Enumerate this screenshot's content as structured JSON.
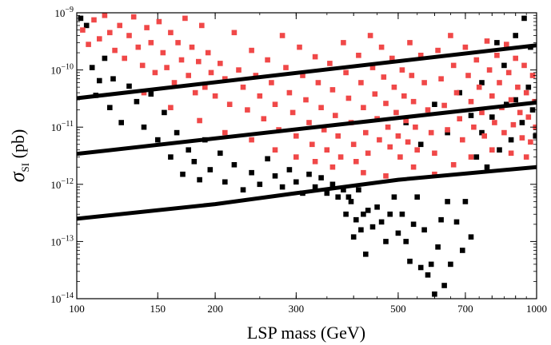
{
  "chart_data": {
    "type": "scatter",
    "xlabel": "LSP mass (GeV)",
    "ylabel_main": "σ",
    "ylabel_sub": "SI",
    "ylabel_unit": " (pb)",
    "x_scale": "log",
    "y_scale": "log",
    "xlim": [
      100,
      1000
    ],
    "ylim": [
      1e-14,
      1e-09
    ],
    "x_ticks": [
      {
        "value": 100,
        "label": "100"
      },
      {
        "value": 150,
        "label": "150"
      },
      {
        "value": 200,
        "label": "200"
      },
      {
        "value": 300,
        "label": "300"
      },
      {
        "value": 500,
        "label": "500"
      },
      {
        "value": 700,
        "label": "700"
      },
      {
        "value": 1000,
        "label": "1000"
      }
    ],
    "y_ticks": [
      {
        "value": 1e-14,
        "mant": "10",
        "exp": "−14"
      },
      {
        "value": 1e-13,
        "mant": "10",
        "exp": "−13"
      },
      {
        "value": 1e-12,
        "mant": "10",
        "exp": "−12"
      },
      {
        "value": 1e-11,
        "mant": "10",
        "exp": "−11"
      },
      {
        "value": 1e-10,
        "mant": "10",
        "exp": "−10"
      },
      {
        "value": 1e-09,
        "mant": "10",
        "exp": "−9"
      }
    ],
    "grid": false,
    "lines": [
      {
        "color": "#000000",
        "points": [
          [
            100,
            3.2e-11
          ],
          [
            1000,
            2.7e-10
          ]
        ]
      },
      {
        "color": "#000000",
        "points": [
          [
            100,
            3.4e-12
          ],
          [
            1000,
            2.7e-11
          ]
        ]
      },
      {
        "color": "#000000",
        "points": [
          [
            100,
            2.5e-13
          ],
          [
            200,
            4.5e-13
          ],
          [
            300,
            7e-13
          ],
          [
            500,
            1.2e-12
          ],
          [
            1000,
            2e-12
          ]
        ]
      }
    ],
    "series": [
      {
        "color": "#000000",
        "points": [
          [
            102,
            8e-10
          ],
          [
            105,
            6e-10
          ],
          [
            108,
            1.1e-10
          ],
          [
            110,
            3.6e-11
          ],
          [
            112,
            6.5e-11
          ],
          [
            115,
            1.6e-10
          ],
          [
            118,
            2.2e-11
          ],
          [
            120,
            7e-11
          ],
          [
            125,
            1.2e-11
          ],
          [
            130,
            5.2e-11
          ],
          [
            135,
            2.8e-11
          ],
          [
            140,
            1e-11
          ],
          [
            145,
            3.8e-11
          ],
          [
            150,
            6e-12
          ],
          [
            155,
            1.8e-11
          ],
          [
            160,
            3e-12
          ],
          [
            165,
            8e-12
          ],
          [
            170,
            1.5e-12
          ],
          [
            175,
            4e-12
          ],
          [
            180,
            2.5e-12
          ],
          [
            185,
            1.2e-12
          ],
          [
            190,
            6e-12
          ],
          [
            195,
            1.8e-12
          ],
          [
            205,
            3.5e-12
          ],
          [
            210,
            1.1e-12
          ],
          [
            220,
            2.2e-12
          ],
          [
            230,
            8e-13
          ],
          [
            240,
            1.6e-12
          ],
          [
            250,
            1e-12
          ],
          [
            260,
            2.8e-12
          ],
          [
            270,
            1.4e-12
          ],
          [
            280,
            9e-13
          ],
          [
            290,
            1.8e-12
          ],
          [
            300,
            1.1e-12
          ],
          [
            310,
            7e-13
          ],
          [
            320,
            1.5e-12
          ],
          [
            330,
            9e-13
          ],
          [
            340,
            1.3e-12
          ],
          [
            350,
            7e-13
          ],
          [
            360,
            1e-12
          ],
          [
            370,
            6e-13
          ],
          [
            380,
            8e-13
          ],
          [
            385,
            3e-13
          ],
          [
            390,
            6e-13
          ],
          [
            395,
            5e-13
          ],
          [
            400,
            1.2e-13
          ],
          [
            405,
            2.4e-13
          ],
          [
            410,
            8e-13
          ],
          [
            415,
            1.6e-13
          ],
          [
            420,
            3e-13
          ],
          [
            425,
            6e-14
          ],
          [
            430,
            3.5e-13
          ],
          [
            440,
            1.8e-13
          ],
          [
            450,
            4e-13
          ],
          [
            460,
            2.2e-13
          ],
          [
            470,
            1e-13
          ],
          [
            480,
            3e-13
          ],
          [
            490,
            6e-13
          ],
          [
            500,
            1.4e-13
          ],
          [
            510,
            3e-13
          ],
          [
            520,
            1e-13
          ],
          [
            530,
            4.5e-14
          ],
          [
            540,
            2e-13
          ],
          [
            550,
            6e-13
          ],
          [
            560,
            3.5e-14
          ],
          [
            570,
            1.6e-13
          ],
          [
            580,
            2.6e-14
          ],
          [
            590,
            4e-14
          ],
          [
            600,
            1.2e-14
          ],
          [
            610,
            8e-14
          ],
          [
            620,
            2.4e-13
          ],
          [
            630,
            1.7e-14
          ],
          [
            640,
            5e-13
          ],
          [
            650,
            4e-14
          ],
          [
            670,
            2.2e-13
          ],
          [
            690,
            7e-14
          ],
          [
            700,
            5e-13
          ],
          [
            720,
            1.2e-13
          ],
          [
            740,
            3e-12
          ],
          [
            760,
            8e-12
          ],
          [
            780,
            2e-12
          ],
          [
            800,
            1.5e-11
          ],
          [
            830,
            4e-12
          ],
          [
            860,
            2.5e-11
          ],
          [
            880,
            6e-12
          ],
          [
            900,
            3e-11
          ],
          [
            930,
            1.2e-11
          ],
          [
            960,
            5e-11
          ],
          [
            980,
            2e-11
          ],
          [
            995,
            7e-12
          ],
          [
            520,
            1.2e-11
          ],
          [
            560,
            5e-12
          ],
          [
            600,
            2.5e-11
          ],
          [
            640,
            8e-12
          ],
          [
            680,
            4e-11
          ],
          [
            720,
            1.6e-11
          ],
          [
            760,
            6e-11
          ],
          [
            820,
            3e-10
          ],
          [
            850,
            1.2e-10
          ],
          [
            900,
            4e-10
          ],
          [
            940,
            8e-10
          ],
          [
            970,
            2.5e-10
          ]
        ]
      },
      {
        "color": "#f04848",
        "points": [
          [
            103,
            5e-10
          ],
          [
            106,
            2.8e-10
          ],
          [
            109,
            7.5e-10
          ],
          [
            112,
            3.5e-10
          ],
          [
            115,
            9e-10
          ],
          [
            118,
            4.5e-10
          ],
          [
            121,
            2.2e-10
          ],
          [
            124,
            6e-10
          ],
          [
            127,
            1.6e-10
          ],
          [
            130,
            4e-10
          ],
          [
            133,
            8.5e-10
          ],
          [
            136,
            2.5e-10
          ],
          [
            139,
            1.2e-10
          ],
          [
            142,
            5.5e-10
          ],
          [
            145,
            3e-10
          ],
          [
            148,
            9e-11
          ],
          [
            151,
            7e-10
          ],
          [
            154,
            2e-10
          ],
          [
            157,
            1.1e-10
          ],
          [
            160,
            4.5e-10
          ],
          [
            163,
            6e-11
          ],
          [
            166,
            3e-10
          ],
          [
            169,
            1.5e-10
          ],
          [
            172,
            8e-10
          ],
          [
            175,
            8e-11
          ],
          [
            178,
            2.5e-10
          ],
          [
            181,
            4e-11
          ],
          [
            184,
            1.4e-10
          ],
          [
            187,
            6e-10
          ],
          [
            190,
            5e-11
          ],
          [
            193,
            2e-10
          ],
          [
            196,
            9e-11
          ],
          [
            200,
            3.5e-11
          ],
          [
            205,
            1.3e-10
          ],
          [
            210,
            7e-11
          ],
          [
            215,
            2.5e-11
          ],
          [
            220,
            4.5e-10
          ],
          [
            225,
            1e-10
          ],
          [
            230,
            5e-11
          ],
          [
            235,
            2e-11
          ],
          [
            240,
            2.2e-10
          ],
          [
            245,
            8e-11
          ],
          [
            250,
            3.5e-11
          ],
          [
            255,
            1.4e-11
          ],
          [
            260,
            1.5e-10
          ],
          [
            265,
            6e-11
          ],
          [
            270,
            2.5e-11
          ],
          [
            275,
            9e-12
          ],
          [
            280,
            4e-10
          ],
          [
            285,
            1.1e-10
          ],
          [
            290,
            4e-11
          ],
          [
            295,
            1.8e-11
          ],
          [
            300,
            7e-12
          ],
          [
            305,
            2.5e-10
          ],
          [
            310,
            8e-11
          ],
          [
            315,
            3e-11
          ],
          [
            320,
            1.2e-11
          ],
          [
            325,
            5e-12
          ],
          [
            330,
            1.7e-10
          ],
          [
            335,
            6e-11
          ],
          [
            340,
            2.2e-11
          ],
          [
            345,
            9e-12
          ],
          [
            350,
            4e-12
          ],
          [
            355,
            1.3e-10
          ],
          [
            360,
            4.5e-11
          ],
          [
            365,
            1.6e-11
          ],
          [
            370,
            7e-12
          ],
          [
            375,
            3e-12
          ],
          [
            380,
            3e-10
          ],
          [
            385,
            9e-11
          ],
          [
            390,
            3.2e-11
          ],
          [
            395,
            1.2e-11
          ],
          [
            400,
            5e-12
          ],
          [
            405,
            2.5e-12
          ],
          [
            410,
            1.8e-10
          ],
          [
            415,
            6e-11
          ],
          [
            420,
            2.2e-11
          ],
          [
            425,
            8e-12
          ],
          [
            430,
            3.5e-12
          ],
          [
            435,
            4e-10
          ],
          [
            440,
            1.1e-10
          ],
          [
            445,
            3.8e-11
          ],
          [
            450,
            1.4e-11
          ],
          [
            455,
            6e-12
          ],
          [
            460,
            2.5e-10
          ],
          [
            465,
            7.5e-11
          ],
          [
            470,
            2.6e-11
          ],
          [
            475,
            1e-11
          ],
          [
            480,
            4.5e-12
          ],
          [
            485,
            1.6e-10
          ],
          [
            490,
            5e-11
          ],
          [
            495,
            1.8e-11
          ],
          [
            500,
            7e-12
          ],
          [
            505,
            3e-12
          ],
          [
            510,
            1e-10
          ],
          [
            515,
            3.5e-11
          ],
          [
            520,
            1.3e-11
          ],
          [
            525,
            5.5e-12
          ],
          [
            530,
            3e-10
          ],
          [
            535,
            8e-11
          ],
          [
            540,
            2.8e-11
          ],
          [
            545,
            1e-11
          ],
          [
            550,
            4e-12
          ],
          [
            560,
            1.8e-10
          ],
          [
            570,
            6e-11
          ],
          [
            580,
            2e-11
          ],
          [
            590,
            8e-12
          ],
          [
            600,
            3.5e-12
          ],
          [
            610,
            2.2e-10
          ],
          [
            620,
            7e-11
          ],
          [
            630,
            2.4e-11
          ],
          [
            640,
            9e-12
          ],
          [
            650,
            4e-10
          ],
          [
            660,
            1.2e-10
          ],
          [
            670,
            4e-11
          ],
          [
            680,
            1.4e-11
          ],
          [
            690,
            6e-12
          ],
          [
            700,
            2.5e-10
          ],
          [
            710,
            8e-11
          ],
          [
            720,
            2.8e-11
          ],
          [
            730,
            1e-11
          ],
          [
            740,
            1.5e-10
          ],
          [
            750,
            5e-11
          ],
          [
            760,
            1.8e-11
          ],
          [
            770,
            7e-12
          ],
          [
            780,
            3.2e-10
          ],
          [
            790,
            1e-10
          ],
          [
            800,
            3.5e-11
          ],
          [
            810,
            1.2e-11
          ],
          [
            820,
            1.8e-10
          ],
          [
            830,
            6e-11
          ],
          [
            840,
            2.2e-11
          ],
          [
            850,
            8e-12
          ],
          [
            860,
            2.8e-10
          ],
          [
            870,
            9e-11
          ],
          [
            880,
            3e-11
          ],
          [
            890,
            1.1e-11
          ],
          [
            900,
            1.6e-10
          ],
          [
            910,
            5e-11
          ],
          [
            920,
            1.8e-11
          ],
          [
            930,
            6.5e-12
          ],
          [
            940,
            1.2e-10
          ],
          [
            950,
            4e-11
          ],
          [
            960,
            1.5e-11
          ],
          [
            970,
            5.5e-12
          ],
          [
            980,
            8e-11
          ],
          [
            990,
            2.8e-11
          ],
          [
            995,
            1e-11
          ],
          [
            140,
            4e-11
          ],
          [
            160,
            2.2e-11
          ],
          [
            185,
            1.3e-11
          ],
          [
            210,
            8e-12
          ],
          [
            240,
            6e-12
          ],
          [
            270,
            4e-12
          ],
          [
            300,
            3e-12
          ],
          [
            330,
            2.5e-12
          ],
          [
            360,
            2e-12
          ],
          [
            420,
            1.6e-12
          ],
          [
            470,
            1.4e-12
          ],
          [
            540,
            2e-12
          ],
          [
            600,
            1.5e-12
          ],
          [
            660,
            2.2e-12
          ],
          [
            720,
            3e-12
          ],
          [
            800,
            4e-12
          ],
          [
            880,
            3.5e-12
          ],
          [
            950,
            3e-12
          ]
        ]
      }
    ]
  }
}
